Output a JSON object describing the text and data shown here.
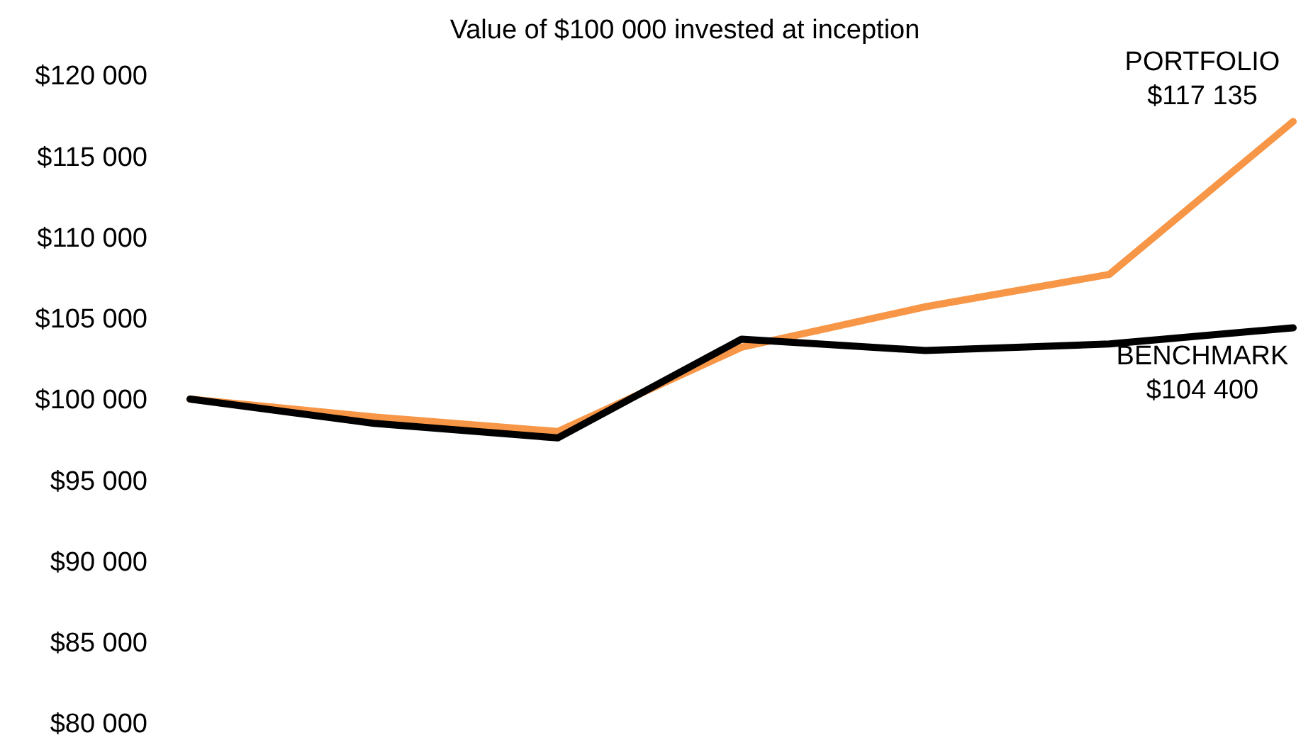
{
  "chart_data": {
    "type": "line",
    "title": "Value of $100 000 invested at inception",
    "categories": [
      null,
      null,
      null,
      null,
      null,
      null,
      null
    ],
    "series": [
      {
        "name": "PORTFOLIO",
        "color": "#f79646",
        "values": [
          100000,
          98900,
          98000,
          103200,
          105700,
          107700,
          117135
        ],
        "value_labels": [
          null,
          null,
          null,
          null,
          null,
          null,
          "$117 135"
        ]
      },
      {
        "name": "BENCHMARK",
        "color": "#000000",
        "values": [
          100000,
          98500,
          97600,
          103700,
          103000,
          103400,
          104400
        ],
        "value_labels": [
          null,
          null,
          null,
          null,
          null,
          null,
          "$104 400"
        ]
      }
    ],
    "ylim": [
      80000,
      120000
    ],
    "yticks": [
      {
        "value": 80000,
        "label": "$80 000"
      },
      {
        "value": 85000,
        "label": "$85 000"
      },
      {
        "value": 90000,
        "label": "$90 000"
      },
      {
        "value": 95000,
        "label": "$95 000"
      },
      {
        "value": 100000,
        "label": "$100 000"
      },
      {
        "value": 105000,
        "label": "$105 000"
      },
      {
        "value": 110000,
        "label": "$110 000"
      },
      {
        "value": 115000,
        "label": "$115 000"
      },
      {
        "value": 120000,
        "label": "$120 000"
      }
    ],
    "grid": false
  }
}
